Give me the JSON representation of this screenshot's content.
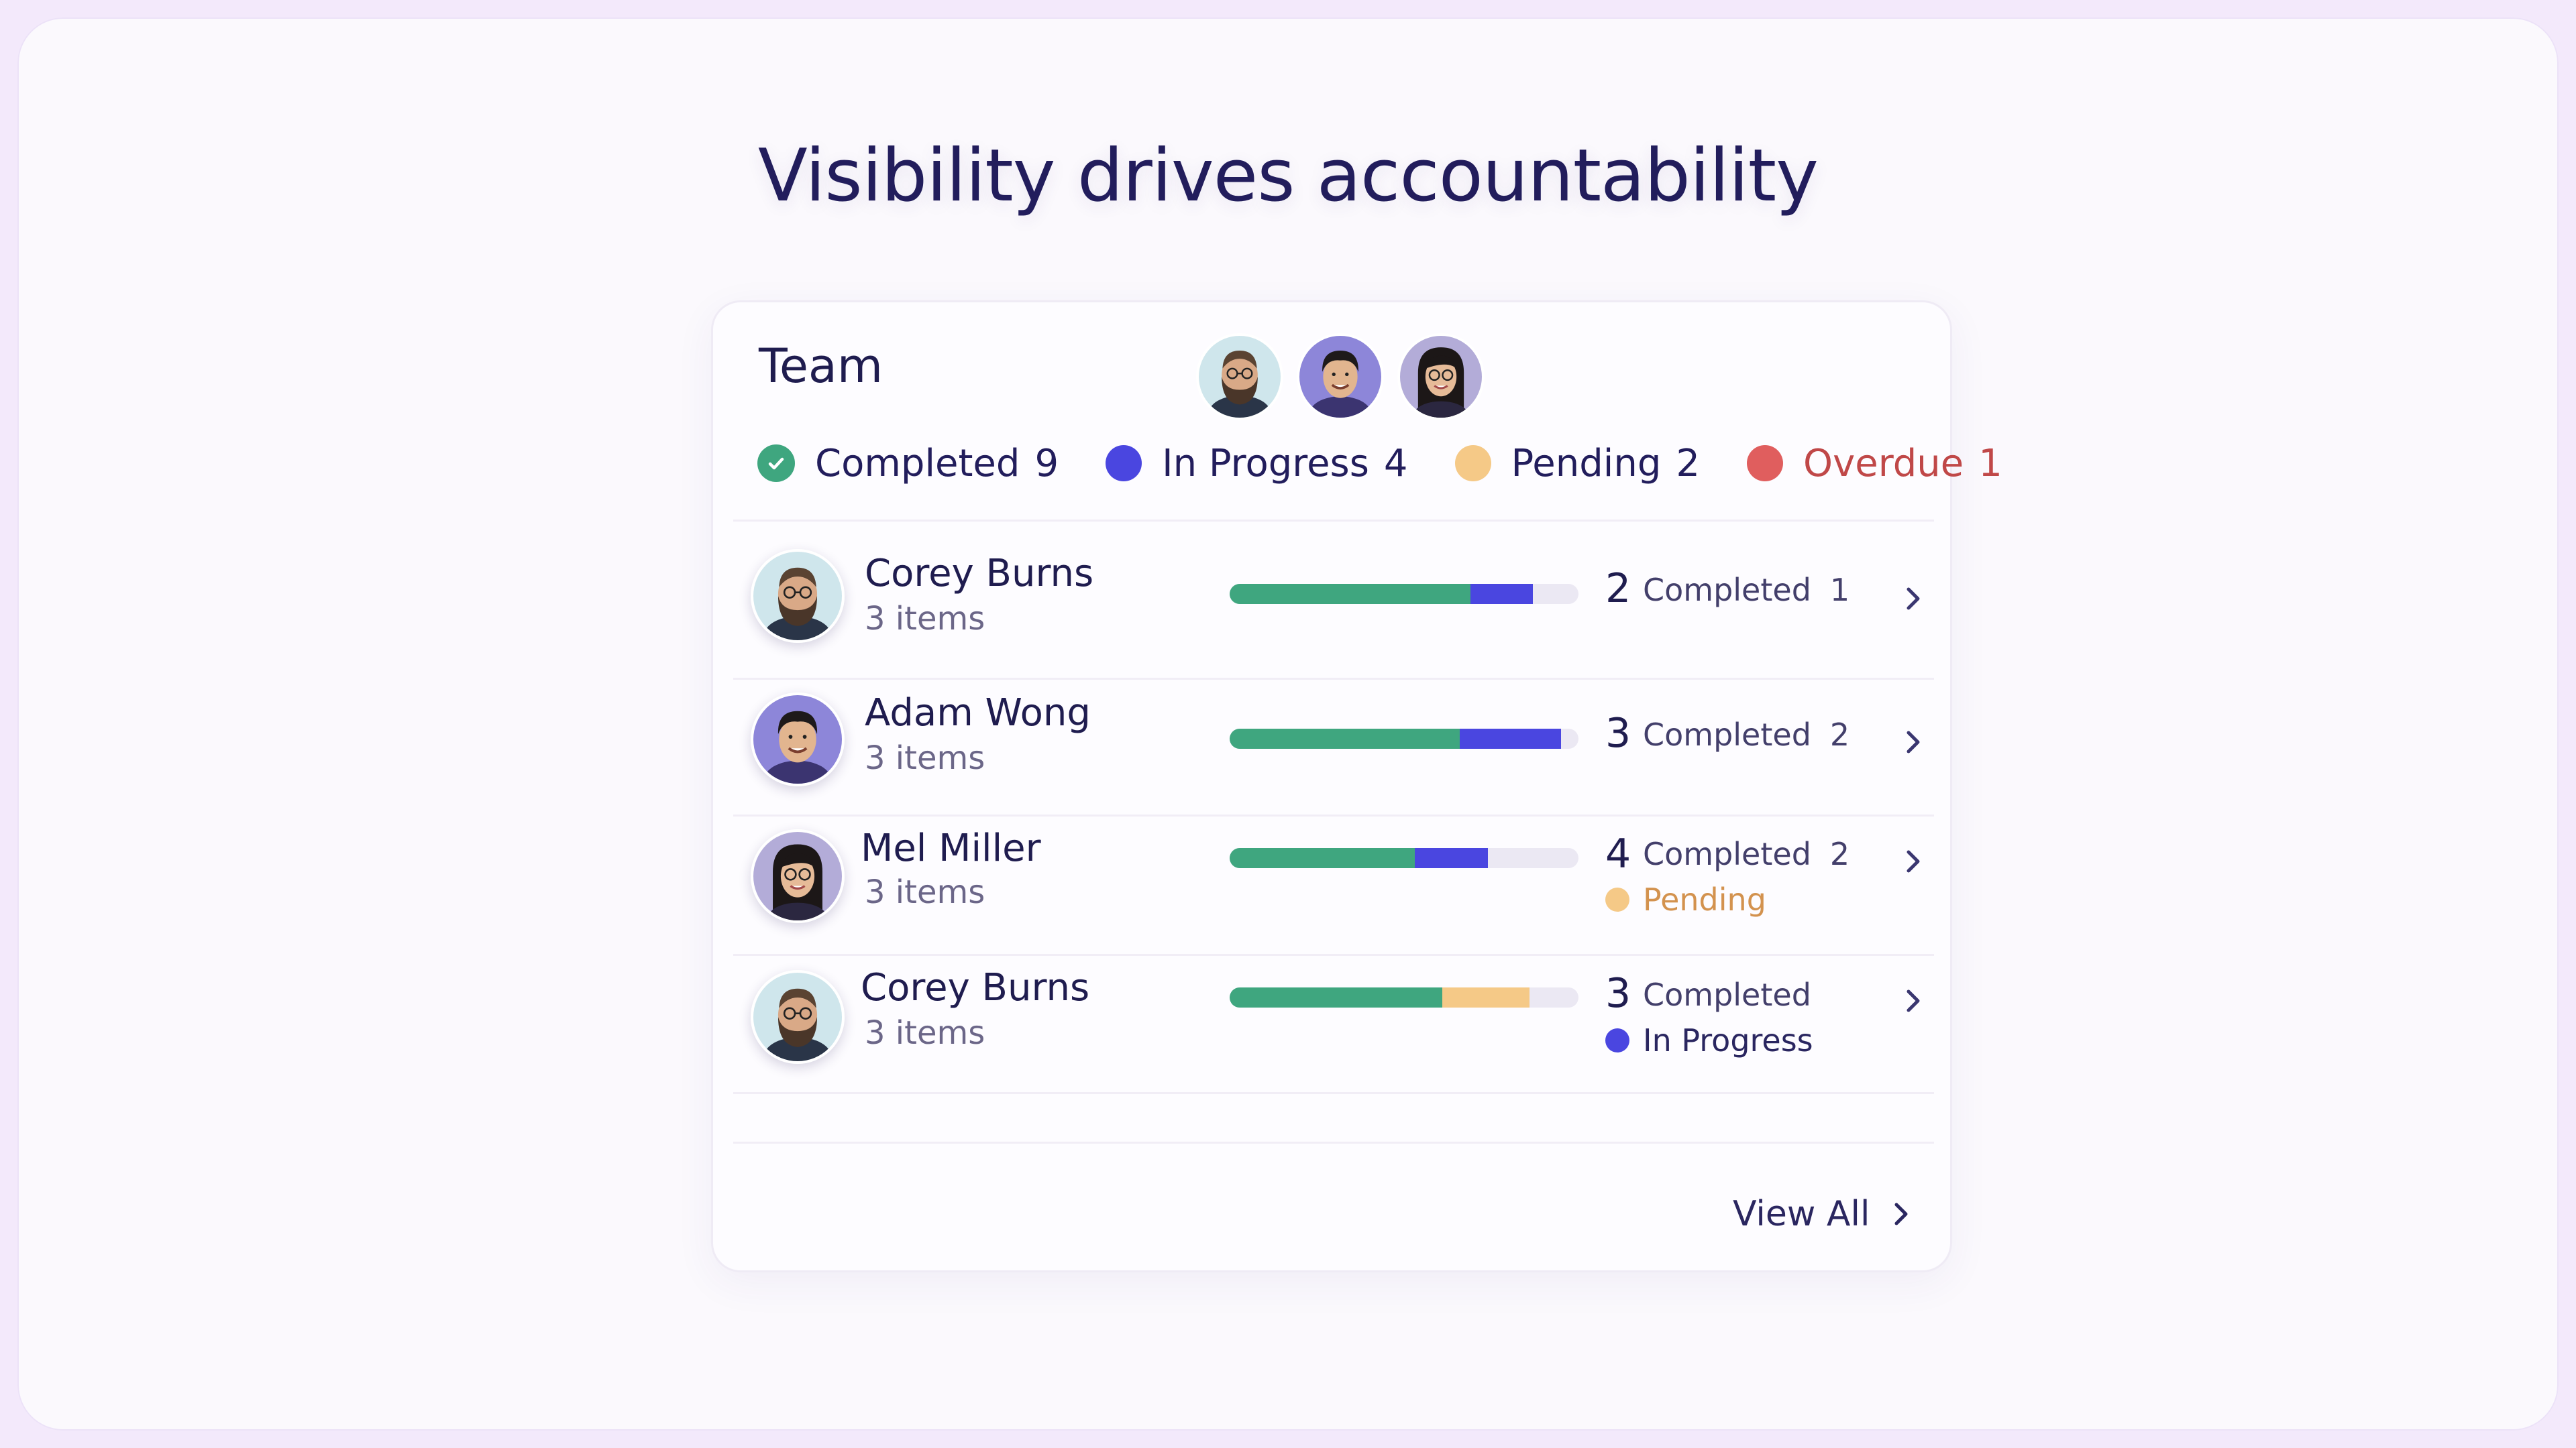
{
  "headline": "Visibility drives accountability",
  "team": {
    "title": "Team",
    "avatars": [
      "avatar-bearded-glasses",
      "avatar-smiling-man",
      "avatar-woman-glasses"
    ]
  },
  "legend": {
    "completed": {
      "label": "Completed",
      "count": "9",
      "color": "#3fa67f"
    },
    "in_progress": {
      "label": "In Progress",
      "count": "4",
      "color": "#4a46e0"
    },
    "pending": {
      "label": "Pending",
      "count": "2",
      "color": "#f5c987"
    },
    "overdue": {
      "label": "Overdue",
      "count": "1",
      "color": "#e05e5e"
    }
  },
  "members": [
    {
      "name": "Corey Burns",
      "items": "3 items",
      "avatar": "avatar-bearded-glasses",
      "count": "2",
      "status": "Completed",
      "status_count": "1",
      "progress": {
        "completed": 0.69,
        "in_progress": 0.18,
        "pending": 0
      }
    },
    {
      "name": "Adam Wong",
      "items": "3 items",
      "avatar": "avatar-smiling-man",
      "count": "3",
      "status": "Completed",
      "status_count": "2",
      "progress": {
        "completed": 0.66,
        "in_progress": 0.29,
        "pending": 0
      }
    },
    {
      "name": "Mel Miller",
      "items": "3 items",
      "avatar": "avatar-woman-glasses",
      "count": "4",
      "status": "Completed",
      "status_count": "2",
      "sub_status": "Pending",
      "progress": {
        "completed": 0.53,
        "in_progress": 0.21,
        "pending": 0
      }
    },
    {
      "name": "Corey Burns",
      "items": "3 items",
      "avatar": "avatar-bearded-glasses",
      "count": "3",
      "status": "Completed",
      "status_count": "",
      "sub_status": "In Progress",
      "progress": {
        "completed": 0.61,
        "in_progress": 0,
        "pending": 0.25
      }
    }
  ],
  "footer": {
    "view_all": "View All"
  },
  "icons": {
    "row_action": "chevron-right-icon",
    "completed": "check-circle-icon"
  }
}
